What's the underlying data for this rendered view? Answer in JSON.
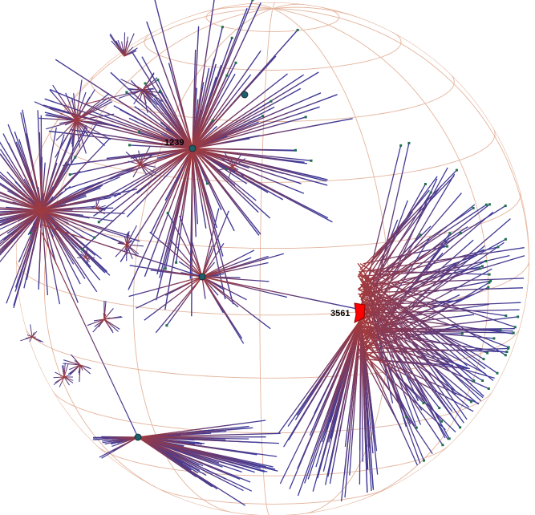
{
  "colors": {
    "background": "#ffffff",
    "sphere_grid": "#e4b49c",
    "edge_outer": "#3a3a9c",
    "edge_inner": "#a33a3a",
    "leaf_node": "#1e6f4a",
    "selected_marker": "#ff0000",
    "hub_node": "#1f5f6a"
  },
  "labels": {
    "hub_node_label": "1239",
    "selected_node_label": "3561"
  },
  "icons": {
    "selected_marker": "red-flag-icon",
    "hub_marker": "hub-node-icon"
  }
}
